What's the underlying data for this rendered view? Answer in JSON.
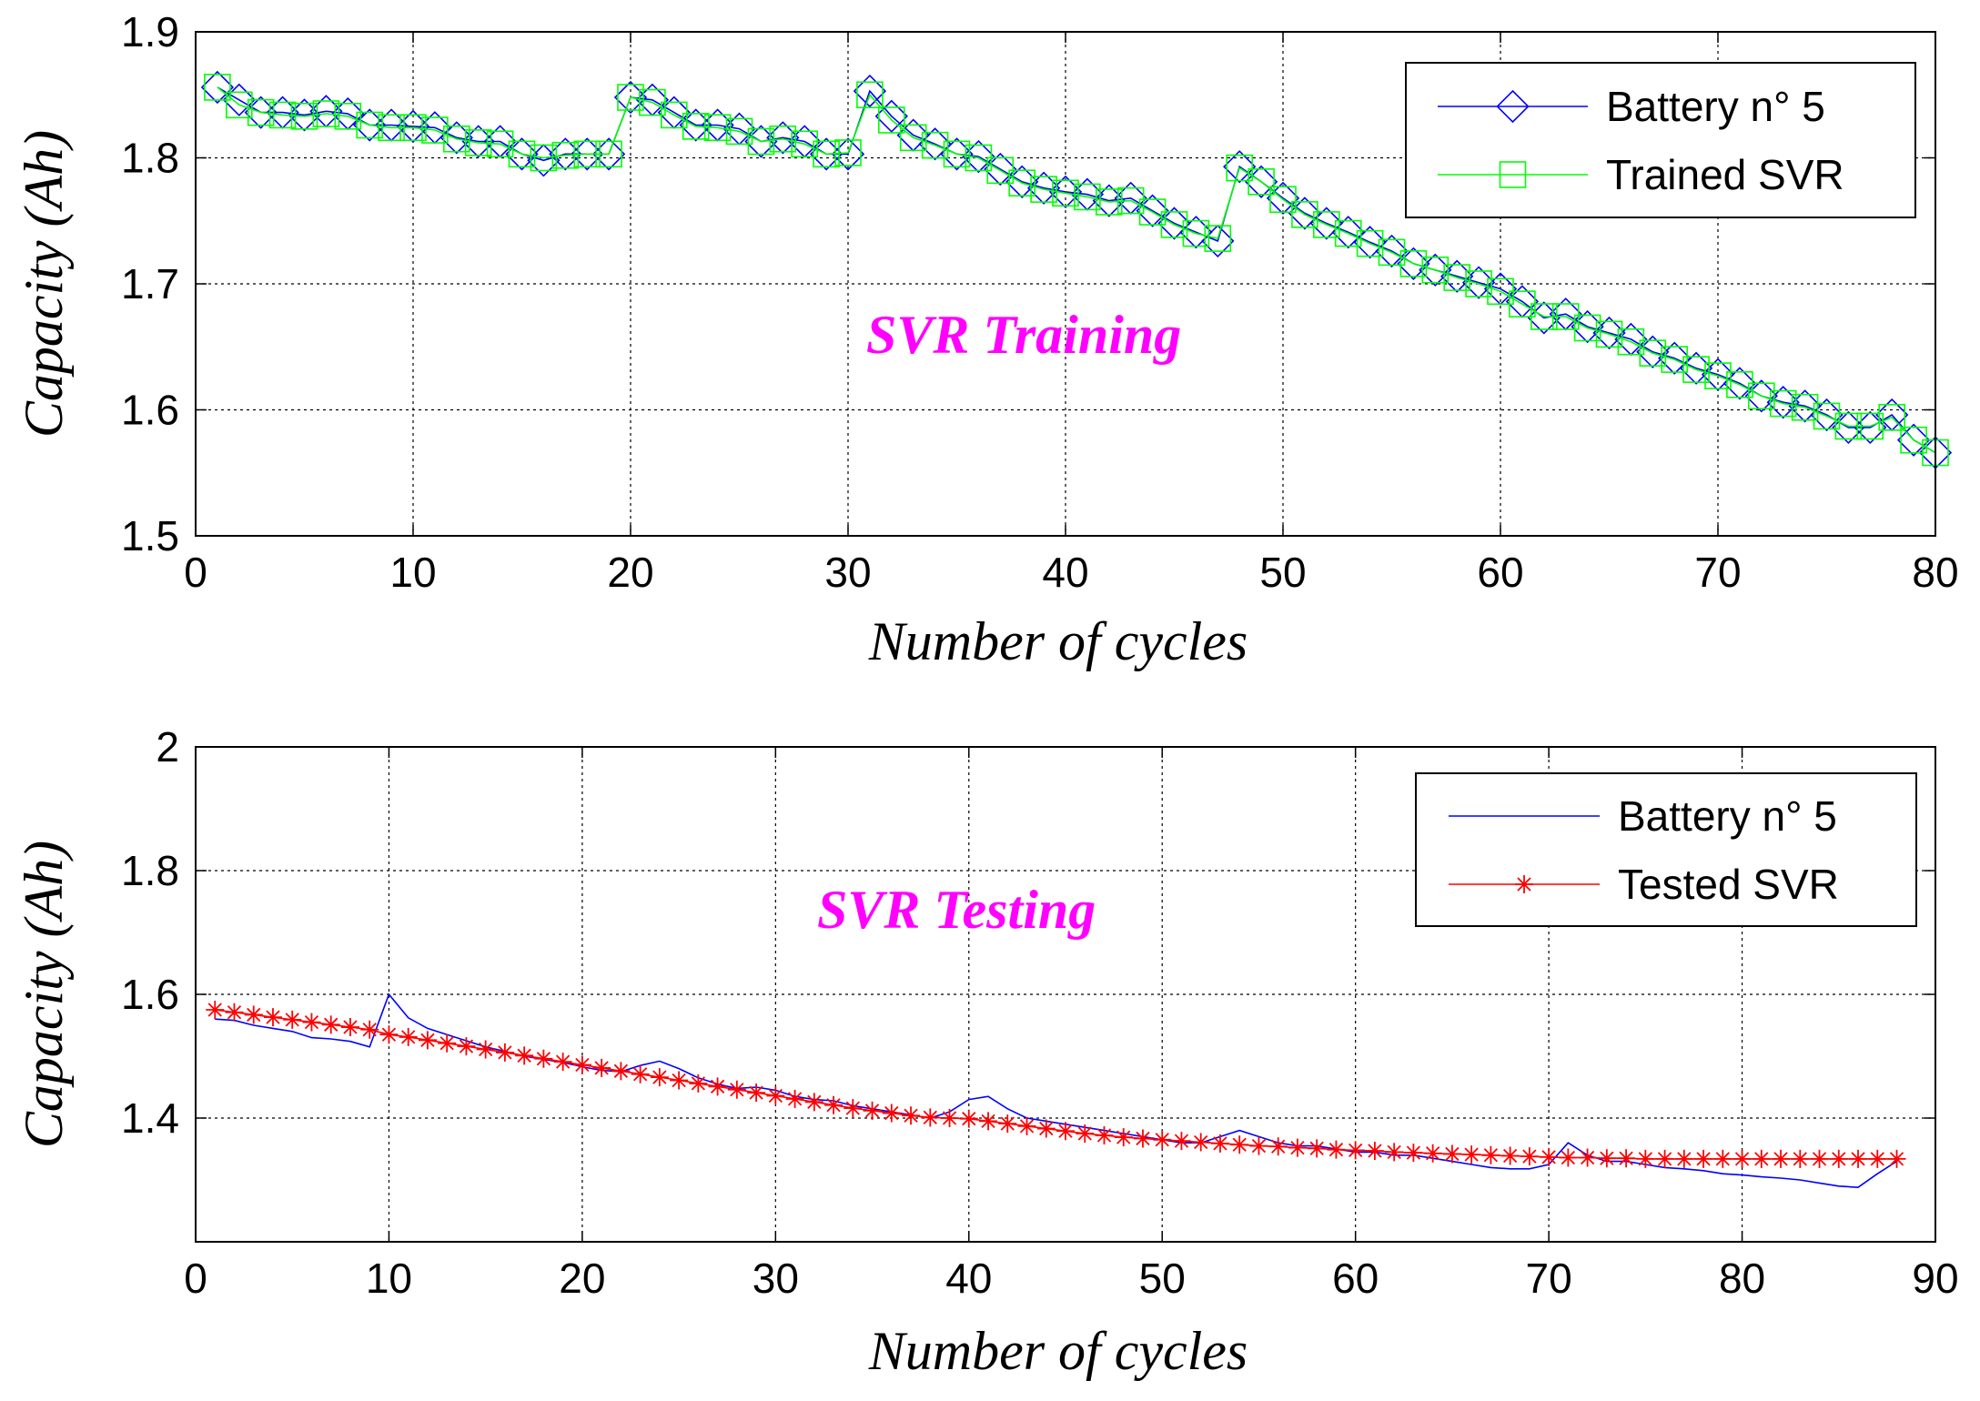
{
  "chart_data": [
    {
      "type": "line",
      "title": "",
      "annotation": "SVR Training",
      "annotation_color": "#ff00ff",
      "xlabel": "Number of cycles",
      "ylabel": "Capacity (Ah)",
      "xlim": [
        0,
        80
      ],
      "ylim": [
        1.5,
        1.9
      ],
      "xticks": [
        0,
        10,
        20,
        30,
        40,
        50,
        60,
        70,
        80
      ],
      "yticks": [
        1.5,
        1.6,
        1.7,
        1.8,
        1.9
      ],
      "xtick_labels": [
        "0",
        "10",
        "20",
        "30",
        "40",
        "50",
        "60",
        "70",
        "80"
      ],
      "ytick_labels": [
        "1.5",
        "1.6",
        "1.7",
        "1.8",
        "1.9"
      ],
      "grid": true,
      "legend_position": "top-right",
      "x": [
        1,
        2,
        3,
        4,
        5,
        6,
        7,
        8,
        9,
        10,
        11,
        12,
        13,
        14,
        15,
        16,
        17,
        18,
        19,
        20,
        21,
        22,
        23,
        24,
        25,
        26,
        27,
        28,
        29,
        30,
        31,
        32,
        33,
        34,
        35,
        36,
        37,
        38,
        39,
        40,
        41,
        42,
        43,
        44,
        45,
        46,
        47,
        48,
        49,
        50,
        51,
        52,
        53,
        54,
        55,
        56,
        57,
        58,
        59,
        60,
        61,
        62,
        63,
        64,
        65,
        66,
        67,
        68,
        69,
        70,
        71,
        72,
        73,
        74,
        75,
        76,
        77,
        78,
        79,
        80
      ],
      "series": [
        {
          "name": "Battery n° 5",
          "color": "#0000ff",
          "marker": "diamond",
          "values": [
            1.856,
            1.846,
            1.836,
            1.836,
            1.834,
            1.837,
            1.835,
            1.826,
            1.826,
            1.825,
            1.824,
            1.816,
            1.813,
            1.813,
            1.803,
            1.798,
            1.803,
            1.803,
            1.803,
            1.848,
            1.846,
            1.836,
            1.826,
            1.826,
            1.823,
            1.813,
            1.816,
            1.813,
            1.803,
            1.803,
            1.853,
            1.833,
            1.818,
            1.811,
            1.803,
            1.801,
            1.791,
            1.781,
            1.776,
            1.773,
            1.771,
            1.766,
            1.768,
            1.758,
            1.748,
            1.741,
            1.734,
            1.793,
            1.781,
            1.768,
            1.756,
            1.748,
            1.741,
            1.733,
            1.726,
            1.716,
            1.711,
            1.706,
            1.701,
            1.696,
            1.686,
            1.673,
            1.676,
            1.666,
            1.661,
            1.656,
            1.646,
            1.641,
            1.633,
            1.628,
            1.621,
            1.611,
            1.606,
            1.603,
            1.596,
            1.586,
            1.586,
            1.596,
            1.576,
            1.566
          ]
        },
        {
          "name": "Trained SVR",
          "color": "#00ff00",
          "marker": "square",
          "values": [
            1.856,
            1.842,
            1.836,
            1.834,
            1.833,
            1.835,
            1.833,
            1.826,
            1.824,
            1.824,
            1.822,
            1.815,
            1.812,
            1.811,
            1.803,
            1.8,
            1.802,
            1.803,
            1.803,
            1.848,
            1.844,
            1.834,
            1.825,
            1.824,
            1.821,
            1.813,
            1.815,
            1.811,
            1.803,
            1.804,
            1.85,
            1.83,
            1.816,
            1.81,
            1.803,
            1.8,
            1.79,
            1.78,
            1.775,
            1.772,
            1.769,
            1.765,
            1.766,
            1.757,
            1.747,
            1.74,
            1.736,
            1.792,
            1.781,
            1.767,
            1.755,
            1.747,
            1.74,
            1.732,
            1.725,
            1.716,
            1.711,
            1.705,
            1.7,
            1.694,
            1.684,
            1.674,
            1.674,
            1.665,
            1.66,
            1.654,
            1.645,
            1.64,
            1.632,
            1.627,
            1.62,
            1.611,
            1.605,
            1.602,
            1.595,
            1.587,
            1.587,
            1.594,
            1.576,
            1.566
          ]
        }
      ]
    },
    {
      "type": "line",
      "title": "",
      "annotation": "SVR Testing",
      "annotation_color": "#ff00ff",
      "xlabel": "Number of cycles",
      "ylabel": "Capacity (Ah)",
      "xlim": [
        0,
        90
      ],
      "ylim": [
        1.2,
        2.0
      ],
      "xticks": [
        0,
        10,
        20,
        30,
        40,
        50,
        60,
        70,
        80,
        90
      ],
      "yticks": [
        1.4,
        1.6,
        1.8,
        2.0
      ],
      "xtick_labels": [
        "0",
        "10",
        "20",
        "30",
        "40",
        "50",
        "60",
        "70",
        "80",
        "90"
      ],
      "ytick_labels": [
        "1.4",
        "1.6",
        "1.8",
        "2"
      ],
      "grid": true,
      "legend_position": "top-right",
      "series": [
        {
          "name": "Battery n° 5",
          "color": "#0000ff",
          "marker": "none",
          "x": [
            1,
            2,
            3,
            4,
            5,
            6,
            7,
            8,
            9,
            10,
            11,
            12,
            13,
            14,
            15,
            16,
            17,
            18,
            19,
            20,
            21,
            22,
            23,
            24,
            25,
            26,
            27,
            28,
            29,
            30,
            31,
            32,
            33,
            34,
            35,
            36,
            37,
            38,
            39,
            40,
            41,
            42,
            43,
            44,
            45,
            46,
            47,
            48,
            49,
            50,
            51,
            52,
            53,
            54,
            55,
            56,
            57,
            58,
            59,
            60,
            61,
            62,
            63,
            64,
            65,
            66,
            67,
            68,
            69,
            70,
            71,
            72,
            73,
            74,
            75,
            76,
            77,
            78,
            79,
            80,
            81,
            82,
            83,
            84,
            85,
            86,
            87,
            88
          ],
          "values": [
            1.56,
            1.558,
            1.55,
            1.545,
            1.54,
            1.53,
            1.528,
            1.524,
            1.515,
            1.6,
            1.562,
            1.545,
            1.535,
            1.525,
            1.515,
            1.508,
            1.5,
            1.495,
            1.49,
            1.483,
            1.477,
            1.475,
            1.485,
            1.492,
            1.48,
            1.465,
            1.455,
            1.448,
            1.45,
            1.445,
            1.435,
            1.43,
            1.428,
            1.42,
            1.415,
            1.41,
            1.405,
            1.4,
            1.41,
            1.43,
            1.435,
            1.415,
            1.4,
            1.395,
            1.39,
            1.385,
            1.38,
            1.375,
            1.37,
            1.365,
            1.36,
            1.36,
            1.37,
            1.38,
            1.37,
            1.36,
            1.355,
            1.355,
            1.35,
            1.345,
            1.345,
            1.34,
            1.34,
            1.335,
            1.33,
            1.325,
            1.32,
            1.318,
            1.318,
            1.325,
            1.36,
            1.34,
            1.33,
            1.33,
            1.325,
            1.32,
            1.318,
            1.315,
            1.31,
            1.308,
            1.305,
            1.303,
            1.3,
            1.295,
            1.29,
            1.288,
            1.31,
            1.33
          ]
        },
        {
          "name": "Tested SVR",
          "color": "#ff0000",
          "marker": "asterisk",
          "x": [
            1,
            2,
            3,
            4,
            5,
            6,
            7,
            8,
            9,
            10,
            11,
            12,
            13,
            14,
            15,
            16,
            17,
            18,
            19,
            20,
            21,
            22,
            23,
            24,
            25,
            26,
            27,
            28,
            29,
            30,
            31,
            32,
            33,
            34,
            35,
            36,
            37,
            38,
            39,
            40,
            41,
            42,
            43,
            44,
            45,
            46,
            47,
            48,
            49,
            50,
            51,
            52,
            53,
            54,
            55,
            56,
            57,
            58,
            59,
            60,
            61,
            62,
            63,
            64,
            65,
            66,
            67,
            68,
            69,
            70,
            71,
            72,
            73,
            74,
            75,
            76,
            77,
            78,
            79,
            80,
            81,
            82,
            83,
            84,
            85,
            86,
            87,
            88
          ],
          "values": [
            1.575,
            1.571,
            1.567,
            1.563,
            1.559,
            1.555,
            1.551,
            1.547,
            1.543,
            1.535,
            1.531,
            1.526,
            1.521,
            1.516,
            1.511,
            1.506,
            1.501,
            1.496,
            1.491,
            1.486,
            1.481,
            1.476,
            1.471,
            1.466,
            1.461,
            1.456,
            1.451,
            1.446,
            1.441,
            1.436,
            1.431,
            1.426,
            1.421,
            1.416,
            1.412,
            1.408,
            1.404,
            1.401,
            1.4,
            1.399,
            1.395,
            1.391,
            1.387,
            1.383,
            1.379,
            1.375,
            1.372,
            1.369,
            1.367,
            1.365,
            1.363,
            1.361,
            1.359,
            1.357,
            1.355,
            1.354,
            1.352,
            1.351,
            1.349,
            1.348,
            1.347,
            1.345,
            1.344,
            1.343,
            1.342,
            1.341,
            1.34,
            1.339,
            1.338,
            1.337,
            1.336,
            1.336,
            1.335,
            1.335,
            1.334,
            1.334,
            1.334,
            1.334,
            1.334,
            1.334,
            1.334,
            1.334,
            1.334,
            1.334,
            1.334,
            1.334,
            1.334,
            1.334
          ]
        }
      ]
    }
  ]
}
